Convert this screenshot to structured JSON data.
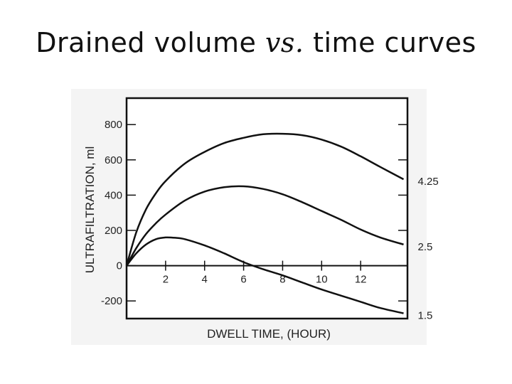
{
  "slide": {
    "title_before": "Drained volume ",
    "title_em": "vs.",
    "title_after": " time curves"
  },
  "chart_data": {
    "type": "line",
    "xlabel": "DWELL TIME,  (HOUR)",
    "ylabel": "ULTRAFILTRATION, ml",
    "xlim": [
      0,
      14.4
    ],
    "ylim": [
      -300,
      950
    ],
    "x_ticks": [
      2,
      4,
      6,
      8,
      10,
      12
    ],
    "y_ticks": [
      800,
      600,
      400,
      200,
      0,
      -200
    ],
    "x_tick_labels": [
      "2",
      "4",
      "6",
      "8",
      "10",
      "12"
    ],
    "y_tick_labels": [
      "800",
      "600",
      "400",
      "200",
      "0",
      "-200"
    ],
    "grid": false,
    "series": [
      {
        "name": "4.25",
        "x": [
          0,
          0.5,
          1,
          1.5,
          2,
          3,
          4,
          5,
          6,
          7,
          8,
          9,
          10,
          11,
          12,
          13,
          14.2
        ],
        "y": [
          0,
          190,
          320,
          410,
          480,
          580,
          645,
          695,
          725,
          745,
          748,
          740,
          715,
          675,
          620,
          560,
          490
        ]
      },
      {
        "name": "2.5",
        "x": [
          0,
          0.5,
          1,
          1.5,
          2,
          3,
          4,
          5,
          6,
          7,
          8,
          9,
          10,
          11,
          12,
          13,
          14.2
        ],
        "y": [
          0,
          100,
          180,
          240,
          290,
          370,
          420,
          445,
          450,
          435,
          405,
          360,
          310,
          260,
          205,
          160,
          120
        ]
      },
      {
        "name": "1.5",
        "x": [
          0,
          0.5,
          1,
          1.5,
          2,
          2.5,
          3,
          4,
          5,
          6,
          7,
          8,
          9,
          10,
          11,
          12,
          13,
          14.2
        ],
        "y": [
          0,
          70,
          120,
          150,
          160,
          158,
          150,
          115,
          70,
          20,
          -20,
          -55,
          -95,
          -135,
          -170,
          -205,
          -240,
          -270
        ]
      }
    ]
  }
}
